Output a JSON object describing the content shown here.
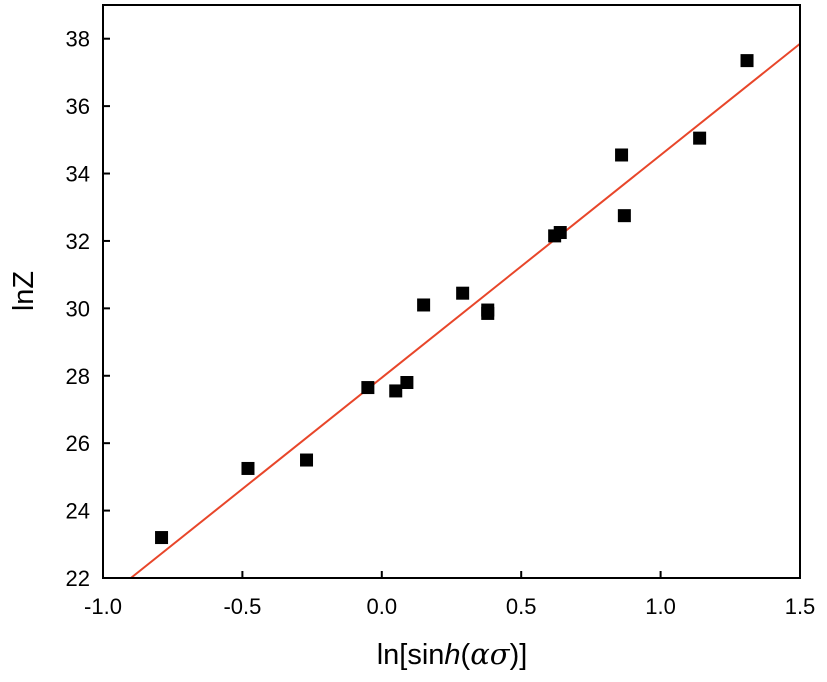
{
  "chart_data": {
    "type": "scatter",
    "title": "",
    "xlabel": {
      "pre": "ln[sin",
      "italic": "h",
      "post": "(",
      "greek": "ασ",
      "end": ")]"
    },
    "ylabel": "lnZ",
    "xlim": [
      -1.0,
      1.5
    ],
    "ylim": [
      22,
      39
    ],
    "xticks": [
      -1.0,
      -0.5,
      0.0,
      0.5,
      1.0,
      1.5
    ],
    "xtick_labels": [
      "-1.0",
      "-0.5",
      "0.0",
      "0.5",
      "1.0",
      "1.5"
    ],
    "yticks": [
      22,
      24,
      26,
      28,
      30,
      32,
      34,
      36,
      38
    ],
    "ytick_labels": [
      "22",
      "24",
      "26",
      "28",
      "30",
      "32",
      "34",
      "36",
      "38"
    ],
    "grid": false,
    "legend": "none",
    "series": [
      {
        "marker": "square",
        "color": "#000000",
        "points": [
          [
            -0.79,
            23.2
          ],
          [
            -0.48,
            25.25
          ],
          [
            -0.27,
            25.5
          ],
          [
            -0.05,
            27.65
          ],
          [
            0.05,
            27.55
          ],
          [
            0.09,
            27.8
          ],
          [
            0.15,
            30.1
          ],
          [
            0.29,
            30.45
          ],
          [
            0.38,
            29.85
          ],
          [
            0.38,
            29.95
          ],
          [
            0.62,
            32.15
          ],
          [
            0.64,
            32.25
          ],
          [
            0.86,
            34.55
          ],
          [
            0.87,
            32.75
          ],
          [
            1.14,
            35.05
          ],
          [
            1.31,
            37.35
          ]
        ]
      }
    ],
    "fit_line": {
      "color": "#e8462a",
      "points": [
        [
          -0.9,
          22.0
        ],
        [
          1.5,
          37.85
        ]
      ]
    }
  }
}
